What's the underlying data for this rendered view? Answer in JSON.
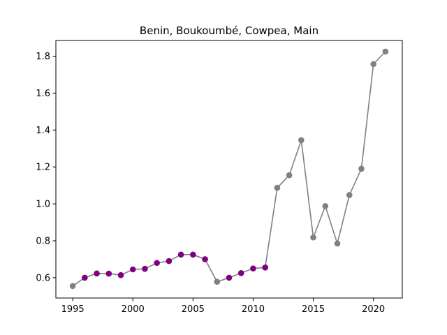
{
  "chart_data": {
    "type": "line",
    "title": "Benin, Boukoumbé, Cowpea, Main",
    "xlabel": "",
    "ylabel": "",
    "xlim": [
      1993.6,
      2022.4
    ],
    "ylim": [
      0.49,
      1.885
    ],
    "x_ticks": [
      1995,
      2000,
      2005,
      2010,
      2015,
      2020
    ],
    "y_ticks": [
      0.6,
      0.8,
      1.0,
      1.2,
      1.4,
      1.6,
      1.8
    ],
    "grid": false,
    "line_color": "#808080",
    "colors": {
      "gray": "#808080",
      "purple": "#800080"
    },
    "x": [
      1995,
      1996,
      1997,
      1998,
      1999,
      2000,
      2001,
      2002,
      2003,
      2004,
      2005,
      2006,
      2007,
      2008,
      2009,
      2010,
      2011,
      2012,
      2013,
      2014,
      2015,
      2016,
      2017,
      2018,
      2019,
      2020,
      2021
    ],
    "y": [
      0.555,
      0.6,
      0.623,
      0.622,
      0.614,
      0.645,
      0.648,
      0.68,
      0.69,
      0.725,
      0.725,
      0.7,
      0.578,
      0.6,
      0.625,
      0.65,
      0.655,
      1.087,
      1.155,
      1.345,
      0.818,
      0.988,
      0.785,
      1.048,
      1.19,
      1.757,
      1.825
    ],
    "marker_colors": [
      "gray",
      "purple",
      "purple",
      "purple",
      "purple",
      "purple",
      "purple",
      "purple",
      "purple",
      "purple",
      "purple",
      "purple",
      "gray",
      "purple",
      "purple",
      "purple",
      "purple",
      "gray",
      "gray",
      "gray",
      "gray",
      "gray",
      "gray",
      "gray",
      "gray",
      "gray",
      "gray"
    ]
  }
}
